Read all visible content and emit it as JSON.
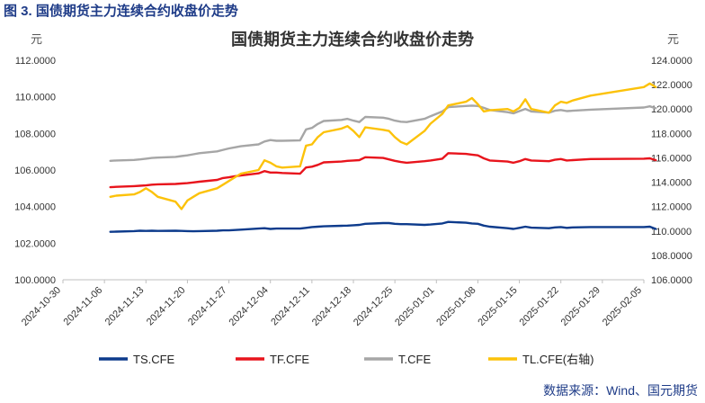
{
  "figure_caption": "图 3.  国债期货主力连续合约收盘价走势",
  "source": "数据来源：Wind、国元期货",
  "chart_data": {
    "type": "line",
    "title": "国债期货主力连续合约收盘价走势",
    "left_unit": "元",
    "right_unit": "元",
    "left_axis": {
      "min": 100,
      "max": 112,
      "step": 2,
      "tick_labels": [
        "100.0000",
        "102.0000",
        "104.0000",
        "106.0000",
        "108.0000",
        "110.0000",
        "112.0000"
      ]
    },
    "right_axis": {
      "min": 106,
      "max": 124,
      "step": 2,
      "tick_labels": [
        "106.0000",
        "108.0000",
        "110.0000",
        "112.0000",
        "114.0000",
        "116.0000",
        "118.0000",
        "120.0000",
        "122.0000",
        "124.0000"
      ]
    },
    "x_ticks": [
      "2024-10-30",
      "2024-11-06",
      "2024-11-13",
      "2024-11-20",
      "2024-11-27",
      "2024-12-04",
      "2024-12-11",
      "2024-12-18",
      "2024-12-25",
      "2025-01-01",
      "2025-01-08",
      "2025-01-15",
      "2025-01-22",
      "2025-01-29",
      "2025-02-05"
    ],
    "dates": [
      "2024-11-07",
      "2024-11-08",
      "2024-11-11",
      "2024-11-12",
      "2024-11-13",
      "2024-11-14",
      "2024-11-15",
      "2024-11-18",
      "2024-11-19",
      "2024-11-20",
      "2024-11-21",
      "2024-11-22",
      "2024-11-25",
      "2024-11-26",
      "2024-11-27",
      "2024-11-28",
      "2024-11-29",
      "2024-12-02",
      "2024-12-03",
      "2024-12-04",
      "2024-12-05",
      "2024-12-06",
      "2024-12-09",
      "2024-12-10",
      "2024-12-11",
      "2024-12-12",
      "2024-12-13",
      "2024-12-16",
      "2024-12-17",
      "2024-12-18",
      "2024-12-19",
      "2024-12-20",
      "2024-12-23",
      "2024-12-24",
      "2024-12-25",
      "2024-12-26",
      "2024-12-27",
      "2024-12-30",
      "2024-12-31",
      "2025-01-02",
      "2025-01-03",
      "2025-01-06",
      "2025-01-07",
      "2025-01-08",
      "2025-01-09",
      "2025-01-10",
      "2025-01-13",
      "2025-01-14",
      "2025-01-15",
      "2025-01-16",
      "2025-01-17",
      "2025-01-20",
      "2025-01-21",
      "2025-01-22",
      "2025-01-23",
      "2025-01-24",
      "2025-01-27",
      "2025-02-05",
      "2025-02-06",
      "2025-02-07"
    ],
    "series": [
      {
        "name": "TS.CFE",
        "axis": "left",
        "color": "#0d3b8c",
        "values": [
          102.62,
          102.63,
          102.66,
          102.68,
          102.67,
          102.68,
          102.67,
          102.68,
          102.67,
          102.66,
          102.65,
          102.66,
          102.68,
          102.7,
          102.7,
          102.72,
          102.74,
          102.8,
          102.82,
          102.78,
          102.8,
          102.8,
          102.8,
          102.84,
          102.88,
          102.9,
          102.92,
          102.95,
          102.96,
          102.98,
          103.0,
          103.06,
          103.1,
          103.1,
          103.06,
          103.04,
          103.04,
          103.0,
          103.02,
          103.08,
          103.16,
          103.12,
          103.08,
          103.06,
          102.96,
          102.9,
          102.82,
          102.78,
          102.84,
          102.9,
          102.85,
          102.82,
          102.86,
          102.88,
          102.84,
          102.86,
          102.88,
          102.88,
          102.9,
          102.78
        ]
      },
      {
        "name": "TF.CFE",
        "axis": "left",
        "color": "#e8141c",
        "values": [
          105.06,
          105.08,
          105.12,
          105.14,
          105.16,
          105.2,
          105.22,
          105.24,
          105.26,
          105.28,
          105.32,
          105.36,
          105.46,
          105.56,
          105.6,
          105.66,
          105.7,
          105.82,
          105.94,
          105.86,
          105.86,
          105.84,
          105.8,
          106.14,
          106.18,
          106.28,
          106.42,
          106.46,
          106.5,
          106.52,
          106.54,
          106.7,
          106.66,
          106.58,
          106.5,
          106.44,
          106.4,
          106.48,
          106.52,
          106.62,
          106.92,
          106.88,
          106.84,
          106.8,
          106.64,
          106.52,
          106.46,
          106.4,
          106.48,
          106.6,
          106.52,
          106.48,
          106.56,
          106.6,
          106.52,
          106.54,
          106.6,
          106.62,
          106.64,
          106.54
        ]
      },
      {
        "name": "T.CFE",
        "axis": "left",
        "color": "#a6a6a6",
        "values": [
          106.5,
          106.52,
          106.55,
          106.58,
          106.62,
          106.66,
          106.68,
          106.72,
          106.76,
          106.8,
          106.86,
          106.92,
          107.02,
          107.1,
          107.18,
          107.24,
          107.3,
          107.4,
          107.56,
          107.64,
          107.6,
          107.6,
          107.62,
          108.22,
          108.3,
          108.52,
          108.68,
          108.74,
          108.8,
          108.7,
          108.62,
          108.9,
          108.86,
          108.8,
          108.7,
          108.64,
          108.62,
          108.8,
          108.94,
          109.2,
          109.44,
          109.5,
          109.52,
          109.5,
          109.4,
          109.28,
          109.16,
          109.1,
          109.22,
          109.34,
          109.2,
          109.14,
          109.24,
          109.28,
          109.22,
          109.24,
          109.3,
          109.42,
          109.48,
          109.38
        ]
      },
      {
        "name": "TL.CFE(右轴)",
        "axis": "right",
        "color": "#fcc20a",
        "values": [
          112.8,
          112.9,
          113.0,
          113.2,
          113.5,
          113.2,
          112.8,
          112.4,
          111.8,
          112.5,
          112.8,
          113.1,
          113.5,
          113.8,
          114.1,
          114.4,
          114.7,
          115.0,
          115.8,
          115.6,
          115.3,
          115.2,
          115.3,
          117.0,
          117.1,
          117.7,
          118.1,
          118.4,
          118.6,
          118.2,
          117.7,
          118.5,
          118.3,
          118.2,
          117.7,
          117.3,
          117.1,
          118.2,
          118.8,
          119.6,
          120.3,
          120.6,
          120.9,
          120.4,
          119.8,
          119.9,
          120.0,
          119.8,
          120.1,
          120.8,
          120.0,
          119.7,
          120.3,
          120.6,
          120.5,
          120.7,
          121.1,
          121.8,
          122.1,
          121.8
        ]
      }
    ]
  }
}
